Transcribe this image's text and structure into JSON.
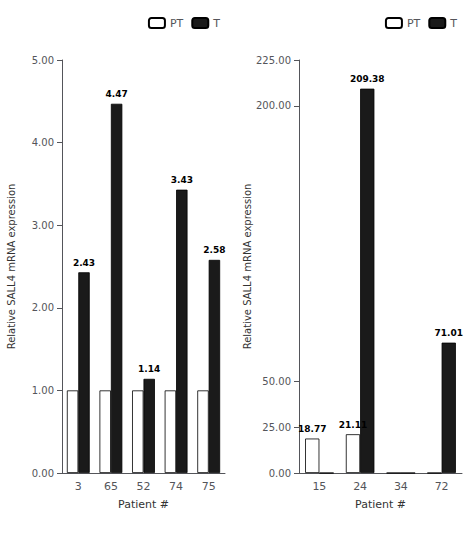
{
  "chart_data": [
    {
      "type": "bar",
      "categories": [
        "3",
        "65",
        "52",
        "74",
        "75"
      ],
      "xlabel": "Patient #",
      "ylabel": "Relative SALL4 mRNA expression",
      "series": [
        {
          "name": "PT",
          "color": "#ffffff",
          "values": [
            1.0,
            1.0,
            1.0,
            1.0,
            1.0
          ]
        },
        {
          "name": "T",
          "color": "#1a1a1a",
          "values": [
            2.43,
            4.47,
            1.14,
            3.43,
            2.58
          ],
          "data_labels": true,
          "value_labels": [
            "2.43",
            "4.47",
            "1.14",
            "3.43",
            "2.58"
          ]
        }
      ],
      "ylim": [
        0,
        5.0
      ],
      "yticks": [
        {
          "value": 0,
          "label": "0.00"
        },
        {
          "value": 1,
          "label": "1.00"
        },
        {
          "value": 2,
          "label": "2.00"
        },
        {
          "value": 3,
          "label": "3.00"
        },
        {
          "value": 4,
          "label": "4.00"
        },
        {
          "value": 5,
          "label": "5.00"
        }
      ],
      "legend": "upper right",
      "grid": false
    },
    {
      "type": "bar",
      "categories": [
        "15",
        "24",
        "34",
        "72"
      ],
      "xlabel": "Patient #",
      "ylabel": "Relative SALL4 mRNA expression",
      "series": [
        {
          "name": "PT",
          "color": "#ffffff",
          "values": [
            18.77,
            21.11,
            0.0,
            0.0
          ],
          "data_labels": true,
          "value_labels": [
            "18.77",
            "21.11",
            null,
            null
          ]
        },
        {
          "name": "T",
          "color": "#1a1a1a",
          "values": [
            0.0,
            209.38,
            0.0,
            71.01
          ],
          "data_labels": true,
          "value_labels": [
            null,
            "209.38",
            null,
            "71.01"
          ]
        }
      ],
      "ylim": [
        0,
        225.0
      ],
      "yticks": [
        {
          "value": 0,
          "label": "0.00"
        },
        {
          "value": 25,
          "label": "25.00"
        },
        {
          "value": 50,
          "label": "50.00"
        },
        {
          "value": 200,
          "label": "200.00"
        },
        {
          "value": 225,
          "label": "225.00"
        }
      ],
      "legend": "upper right",
      "grid": false
    }
  ]
}
